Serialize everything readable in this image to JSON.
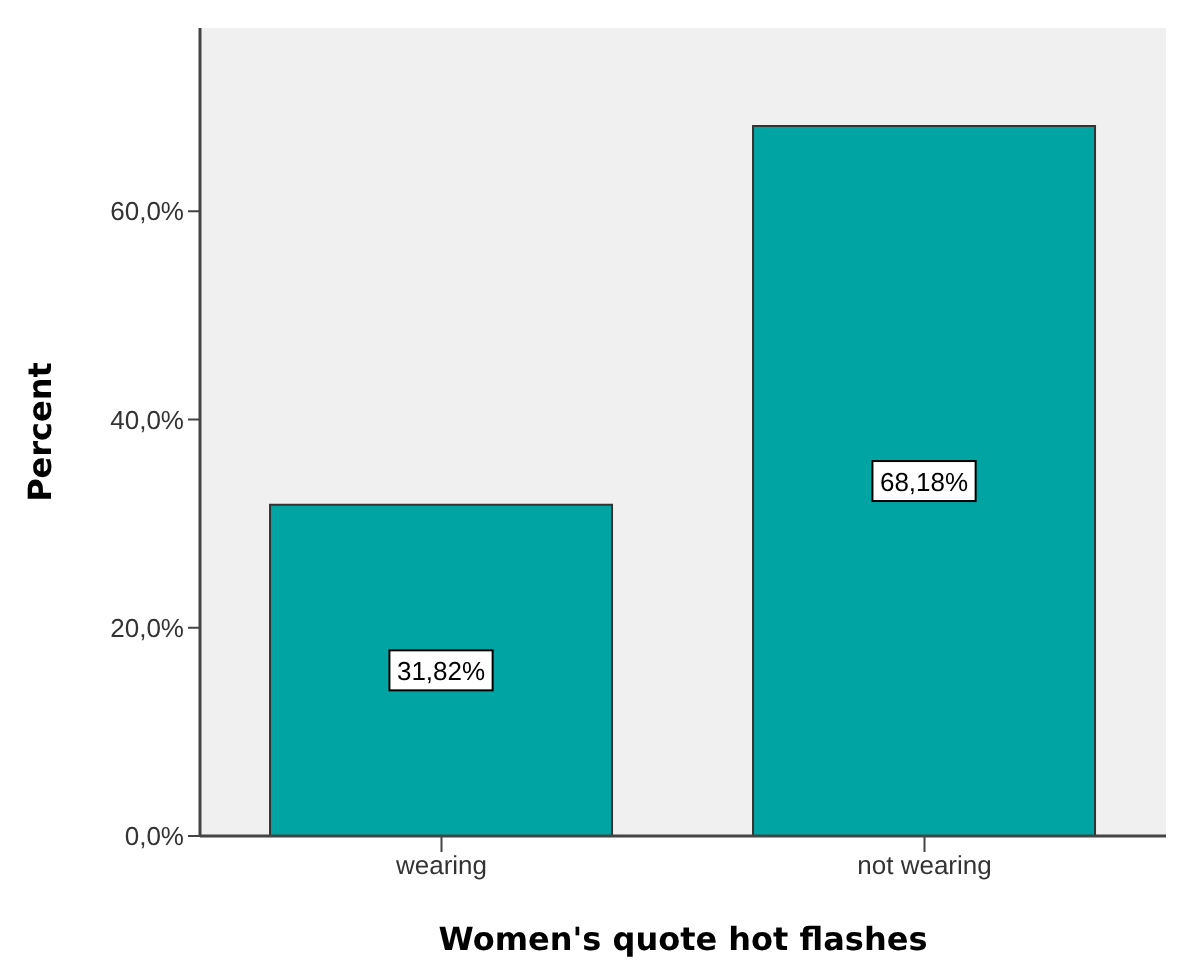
{
  "chart_data": {
    "type": "bar",
    "xlabel": "Women's quote hot flashes",
    "ylabel": "Percent",
    "categories": [
      "wearing",
      "not wearing"
    ],
    "values": [
      31.82,
      68.18
    ],
    "value_labels": [
      "31,82%",
      "68,18%"
    ],
    "color": "#00a5a3",
    "ylim": [
      0,
      77.6
    ],
    "yticks": [
      {
        "value": 0,
        "label": "0,0%"
      },
      {
        "value": 20,
        "label": "20,0%"
      },
      {
        "value": 40,
        "label": "40,0%"
      },
      {
        "value": 60,
        "label": "60,0%"
      }
    ],
    "grid": false,
    "legend": false
  }
}
